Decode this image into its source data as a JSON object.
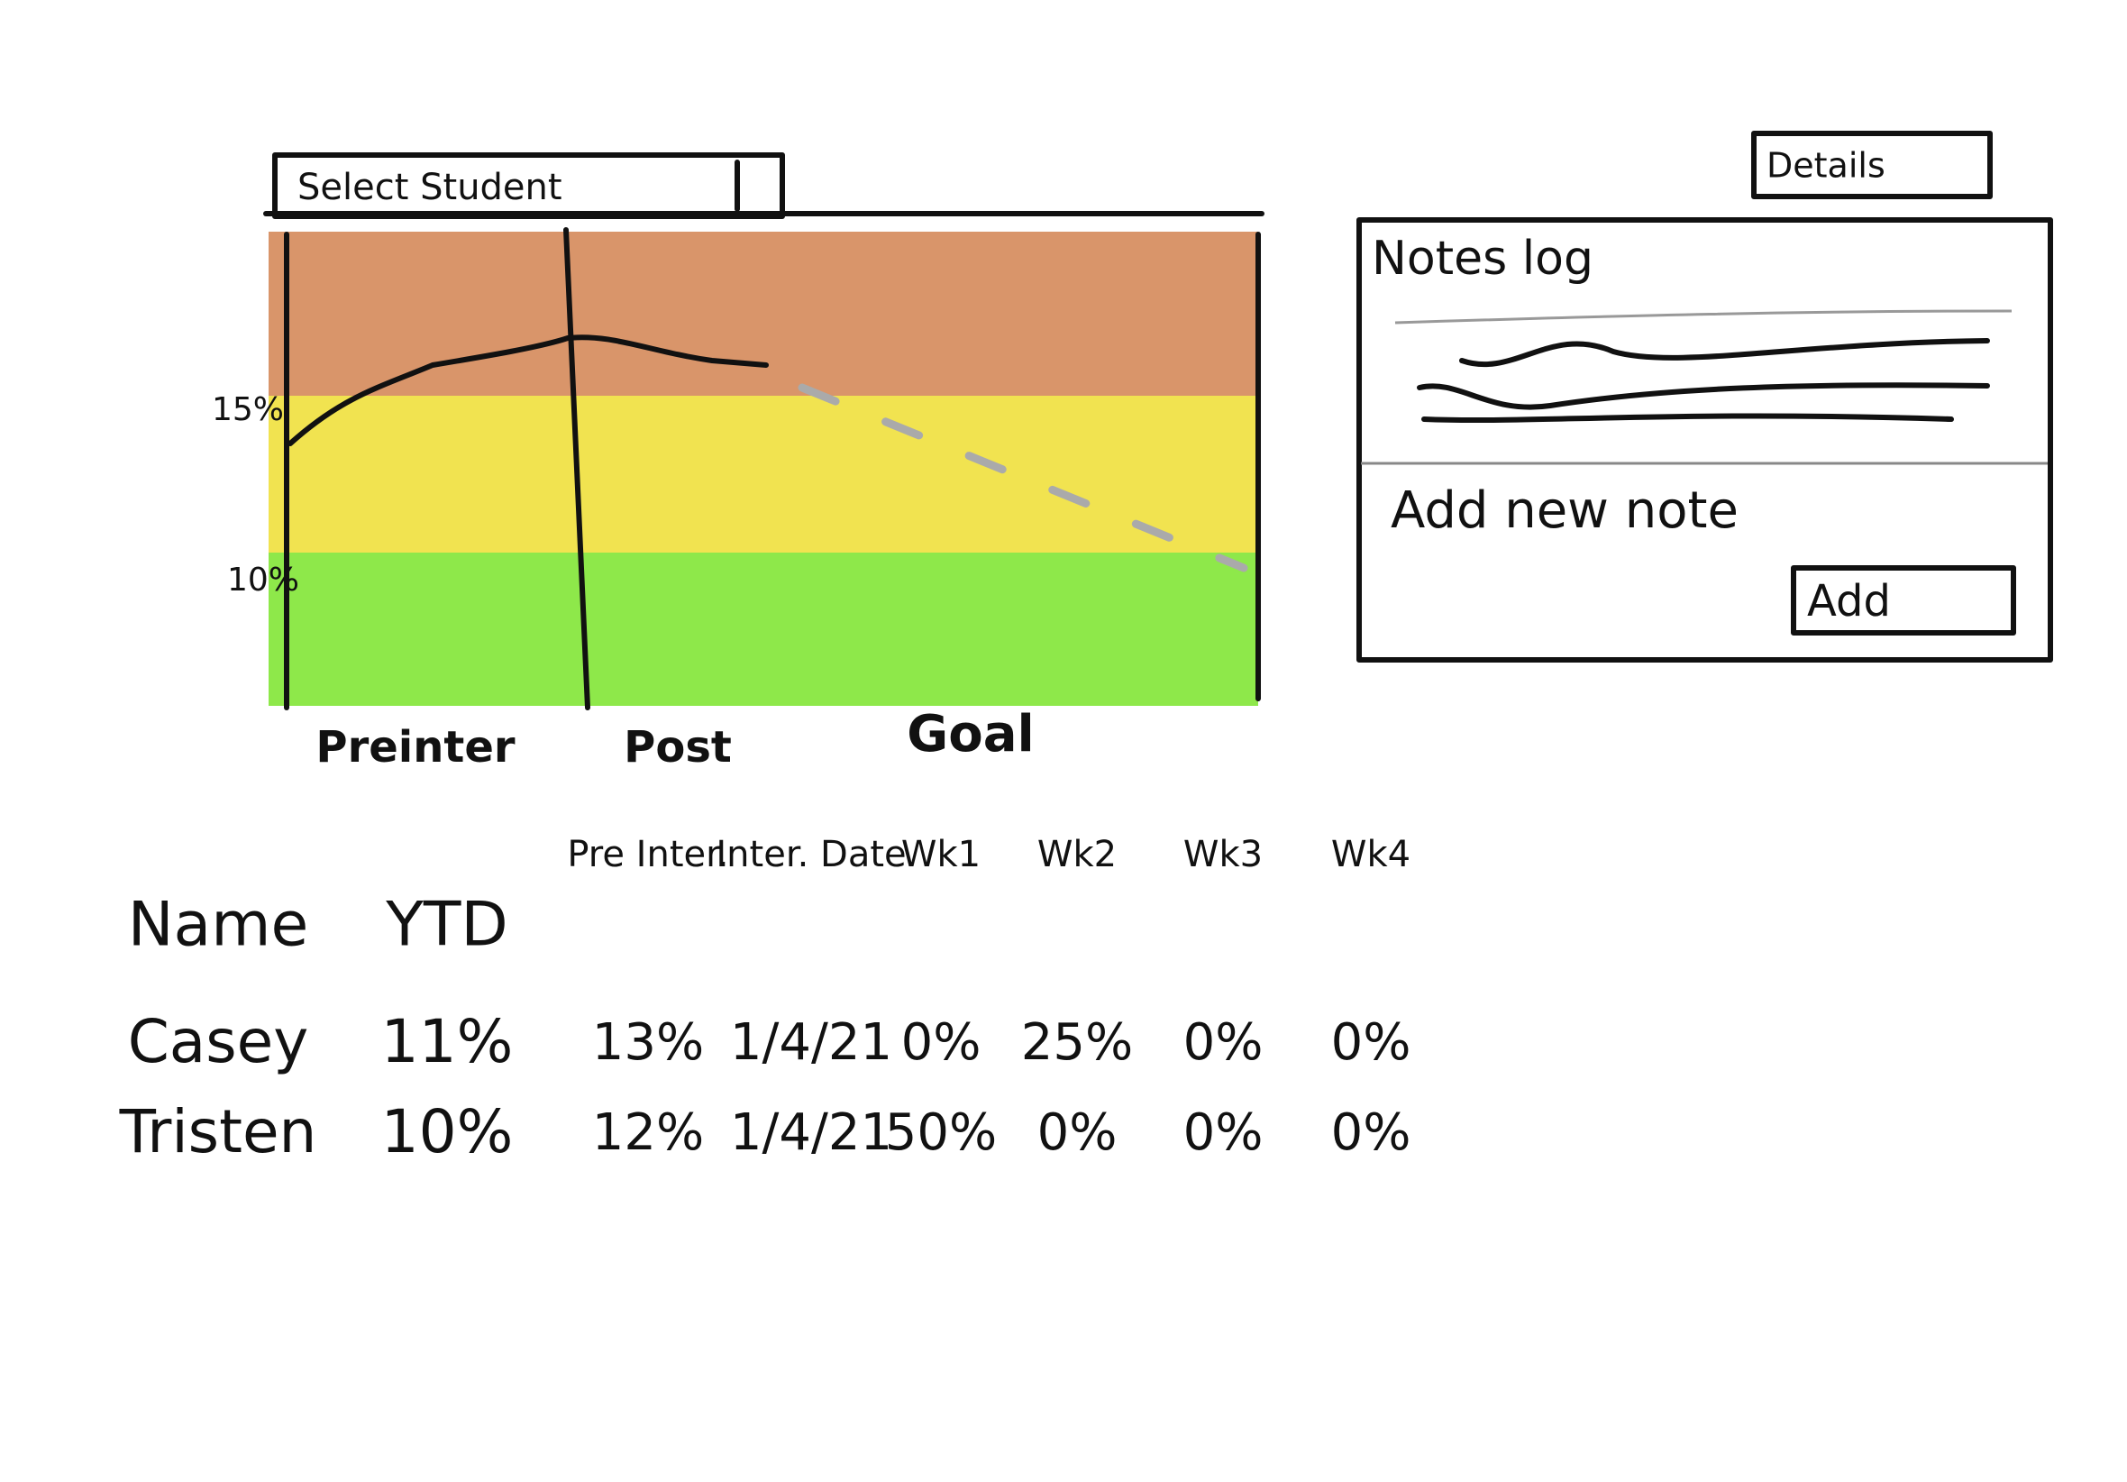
{
  "header": {
    "select": "Select Student",
    "details": "Details"
  },
  "graph": {
    "y_labels": [
      "15%",
      "10%"
    ],
    "x_labels": [
      "Preinter",
      "Post",
      "Goal"
    ]
  },
  "notes": {
    "title": "Notes log",
    "add_prompt": "Add new note",
    "add_button": "Add"
  },
  "table": {
    "columns": [
      "Name",
      "YTD",
      "Pre Inter.",
      "Inter. Date",
      "Wk1",
      "Wk2",
      "Wk3",
      "Wk4"
    ],
    "rows": [
      [
        "Casey",
        "11%",
        "13%",
        "1/4/21",
        "0%",
        "25%",
        "0%",
        "0%"
      ],
      [
        "Tristen",
        "10%",
        "12%",
        "1/4/21",
        "50%",
        "0%",
        "0%",
        "0%"
      ]
    ]
  }
}
